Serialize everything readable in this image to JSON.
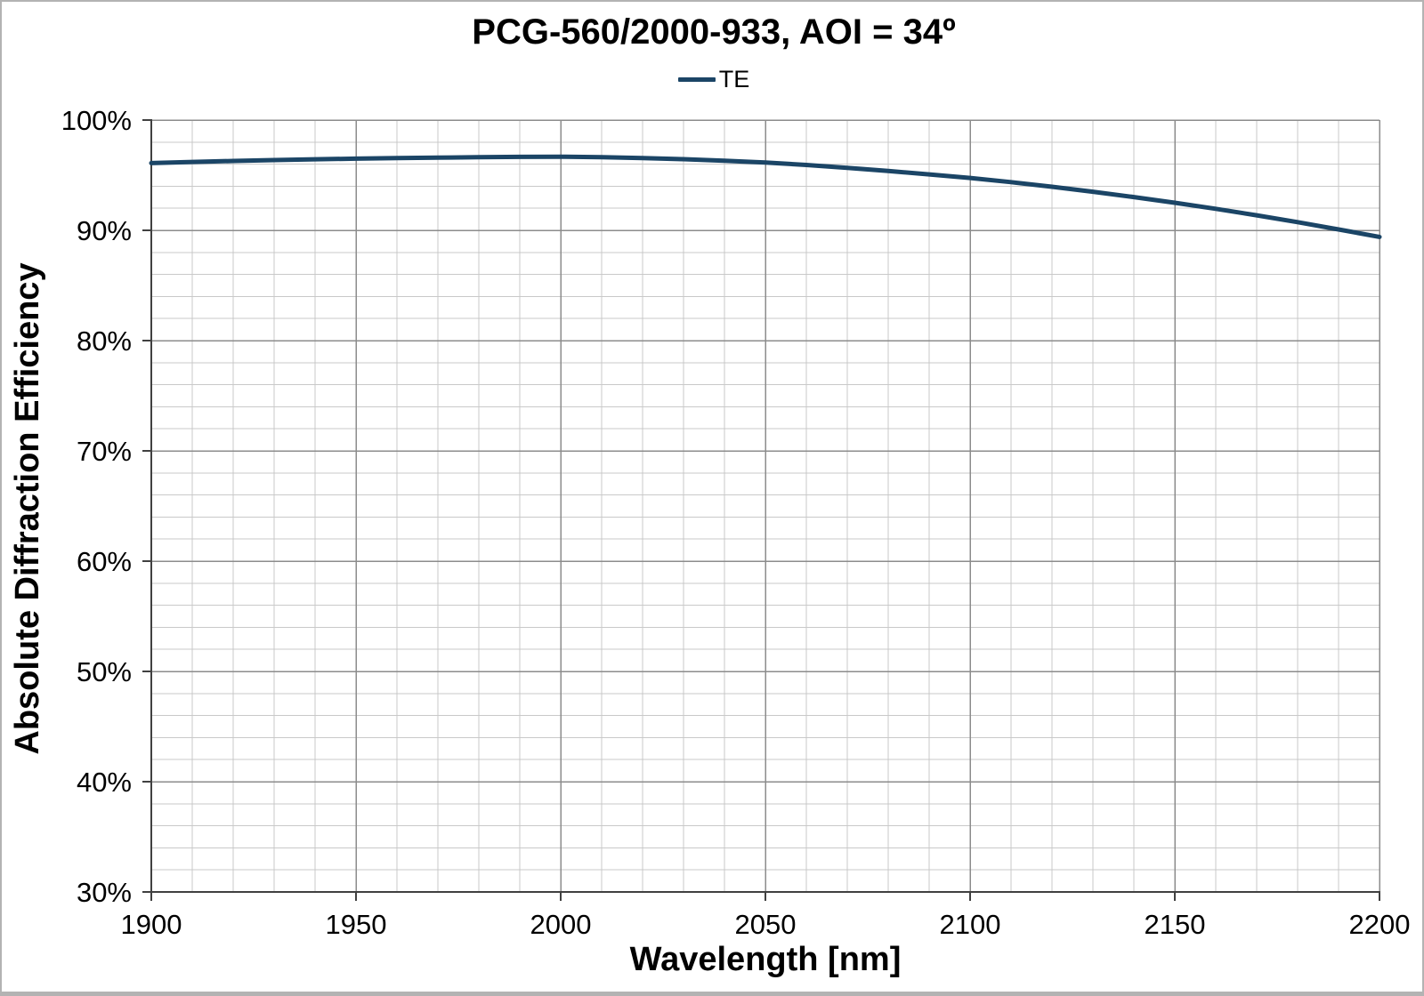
{
  "title": "PCG-560/2000-933, AOI = 34º",
  "legend": [
    {
      "label": "TE",
      "color": "#1b4566"
    }
  ],
  "colors": {
    "line": "#1b4566",
    "grid_minor": "#c9c9c9",
    "grid_major": "#8c8c8c",
    "axis": "#404040",
    "text": "#000000",
    "page_border": "#b3b3b3"
  },
  "chart_data": {
    "type": "line",
    "title": "PCG-560/2000-933, AOI = 34º",
    "xlabel": "Wavelength [nm]",
    "ylabel": "Absolute Diffraction Efficiency",
    "xlim": [
      1900,
      2200
    ],
    "ylim_percent": [
      30,
      100
    ],
    "x_major_step": 50,
    "x_minor_step": 10,
    "y_major_step": 10,
    "y_minor_step": 2,
    "grid": "both-major-and-minor",
    "legend_position": "top-center",
    "x_ticks": [
      "1900",
      "1950",
      "2000",
      "2050",
      "2100",
      "2150",
      "2200"
    ],
    "y_ticks": [
      "100%",
      "90%",
      "80%",
      "70%",
      "60%",
      "50%",
      "40%",
      "30%"
    ],
    "series": [
      {
        "name": "TE",
        "color": "#1b4566",
        "x": [
          1900,
          1910,
          1920,
          1930,
          1940,
          1950,
          1960,
          1970,
          1980,
          1990,
          2000,
          2010,
          2020,
          2030,
          2040,
          2050,
          2060,
          2070,
          2080,
          2090,
          2100,
          2110,
          2120,
          2130,
          2140,
          2150,
          2160,
          2170,
          2180,
          2190,
          2200
        ],
        "values_percent": [
          96.1,
          96.2,
          96.29,
          96.37,
          96.44,
          96.5,
          96.55,
          96.59,
          96.63,
          96.66,
          96.68,
          96.64,
          96.56,
          96.45,
          96.31,
          96.15,
          95.93,
          95.67,
          95.38,
          95.07,
          94.75,
          94.37,
          93.95,
          93.5,
          93.02,
          92.5,
          91.95,
          91.36,
          90.74,
          90.08,
          89.4
        ]
      }
    ]
  }
}
